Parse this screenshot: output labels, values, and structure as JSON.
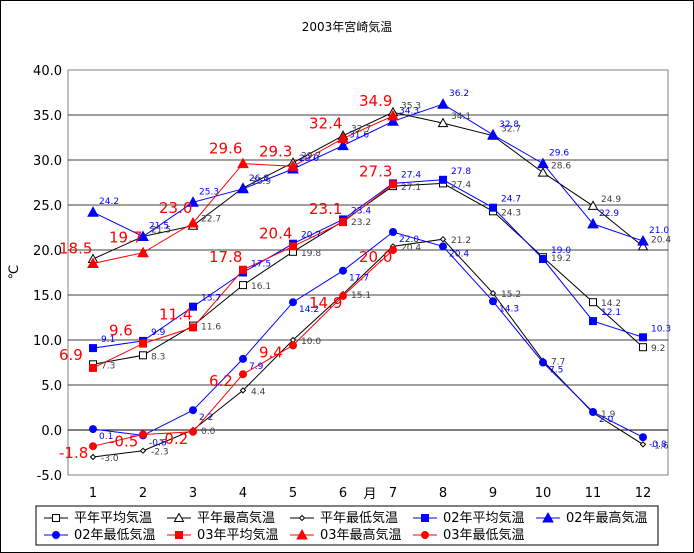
{
  "chart_data": {
    "type": "line",
    "title": "2003年宮崎気温",
    "xlabel": "月",
    "ylabel": "℃",
    "x": [
      1,
      2,
      3,
      4,
      5,
      6,
      7,
      8,
      9,
      10,
      11,
      12
    ],
    "ylim": [
      -5,
      40
    ],
    "yticks": [
      "-5.0",
      "0.0",
      "5.0",
      "10.0",
      "15.0",
      "20.0",
      "25.0",
      "30.0",
      "35.0",
      "40.0"
    ],
    "grid": true,
    "legend_position": "bottom",
    "series": [
      {
        "name": "平年平均気温",
        "color": "#000000",
        "marker": "square-open",
        "labels": false,
        "values": [
          7.3,
          8.3,
          11.6,
          16.1,
          19.8,
          23.2,
          27.1,
          27.4,
          24.3,
          19.2,
          14.2,
          9.2
        ]
      },
      {
        "name": "平年最高気温",
        "color": "#000000",
        "marker": "triangle-open",
        "labels": false,
        "values": [
          19.0,
          21.5,
          22.7,
          26.9,
          29.7,
          32.7,
          35.3,
          34.1,
          32.7,
          28.6,
          24.9,
          20.4
        ]
      },
      {
        "name": "平年最低気温",
        "color": "#000000",
        "marker": "diamond-small",
        "labels": false,
        "values": [
          -3.0,
          -2.3,
          0.0,
          4.4,
          10.0,
          15.1,
          20.4,
          21.2,
          15.2,
          7.7,
          1.9,
          -1.6
        ]
      },
      {
        "name": "02年平均気温",
        "color": "#0000ff",
        "marker": "square",
        "labels": false,
        "values": [
          9.1,
          9.9,
          13.7,
          17.5,
          20.7,
          23.4,
          27.4,
          27.8,
          24.7,
          19.0,
          12.1,
          10.3
        ]
      },
      {
        "name": "02年最高気温",
        "color": "#0000ff",
        "marker": "triangle",
        "labels": false,
        "values": [
          24.2,
          21.5,
          25.3,
          26.8,
          29.0,
          31.6,
          34.3,
          36.2,
          32.8,
          29.6,
          22.9,
          21.0
        ]
      },
      {
        "name": "02年最低気温",
        "color": "#0000ff",
        "marker": "circle",
        "labels": false,
        "values": [
          0.1,
          -0.6,
          2.2,
          7.9,
          14.2,
          17.7,
          22.0,
          20.4,
          14.3,
          7.5,
          2.0,
          -0.8
        ]
      },
      {
        "name": "03年平均気温",
        "color": "#ff0000",
        "marker": "square",
        "labels": true,
        "values": [
          6.9,
          9.6,
          11.4,
          17.8,
          20.4,
          23.1,
          27.3,
          null,
          null,
          null,
          null,
          null
        ]
      },
      {
        "name": "03年最高気温",
        "color": "#ff0000",
        "marker": "triangle",
        "labels": true,
        "values": [
          18.5,
          19.7,
          23.0,
          29.6,
          29.3,
          32.4,
          34.9,
          null,
          null,
          null,
          null,
          null
        ]
      },
      {
        "name": "03年最低気温",
        "color": "#ff0000",
        "marker": "circle",
        "labels": true,
        "values": [
          -1.8,
          -0.5,
          -0.2,
          6.2,
          9.4,
          14.9,
          20.0,
          null,
          null,
          null,
          null,
          null
        ]
      }
    ],
    "point_labels": [
      {
        "text": "7.3",
        "series": 0,
        "i": 0
      },
      {
        "text": "8.3",
        "series": 0,
        "i": 1
      },
      {
        "text": "11.6",
        "series": 0,
        "i": 2
      },
      {
        "text": "16.1",
        "series": 0,
        "i": 3
      },
      {
        "text": "19.8",
        "series": 0,
        "i": 4
      },
      {
        "text": "23.2",
        "series": 0,
        "i": 5
      },
      {
        "text": "27.1",
        "series": 0,
        "i": 6
      },
      {
        "text": "27.4",
        "series": 0,
        "i": 7
      },
      {
        "text": "24.3",
        "series": 0,
        "i": 8
      },
      {
        "text": "19.2",
        "series": 0,
        "i": 9
      },
      {
        "text": "14.2",
        "series": 0,
        "i": 10
      },
      {
        "text": "9.2",
        "series": 0,
        "i": 11
      },
      {
        "text": "21.5",
        "series": 1,
        "i": 1
      },
      {
        "text": "22.7",
        "series": 1,
        "i": 2
      },
      {
        "text": "26.9",
        "series": 1,
        "i": 3
      },
      {
        "text": "29.7",
        "series": 1,
        "i": 4
      },
      {
        "text": "32.7",
        "series": 1,
        "i": 5
      },
      {
        "text": "35.3",
        "series": 1,
        "i": 6
      },
      {
        "text": "34.1",
        "series": 1,
        "i": 7
      },
      {
        "text": "32.7",
        "series": 1,
        "i": 8
      },
      {
        "text": "28.6",
        "series": 1,
        "i": 9
      },
      {
        "text": "24.9",
        "series": 1,
        "i": 10
      },
      {
        "text": "20.4",
        "series": 1,
        "i": 11
      },
      {
        "text": "-3.0",
        "series": 2,
        "i": 0
      },
      {
        "text": "-2.3",
        "series": 2,
        "i": 1
      },
      {
        "text": "0.0",
        "series": 2,
        "i": 2
      },
      {
        "text": "4.4",
        "series": 2,
        "i": 3
      },
      {
        "text": "10.0",
        "series": 2,
        "i": 4
      },
      {
        "text": "15.1",
        "series": 2,
        "i": 5
      },
      {
        "text": "20.4",
        "series": 2,
        "i": 6
      },
      {
        "text": "21.2",
        "series": 2,
        "i": 7
      },
      {
        "text": "15.2",
        "series": 2,
        "i": 8
      },
      {
        "text": "7.7",
        "series": 2,
        "i": 9
      },
      {
        "text": "1.9",
        "series": 2,
        "i": 10
      },
      {
        "text": "-1.6",
        "series": 2,
        "i": 11
      },
      {
        "text": "9.1",
        "series": 3,
        "i": 0
      },
      {
        "text": "9.9",
        "series": 3,
        "i": 1
      },
      {
        "text": "13.7",
        "series": 3,
        "i": 2
      },
      {
        "text": "17.5",
        "series": 3,
        "i": 3
      },
      {
        "text": "20.7",
        "series": 3,
        "i": 4
      },
      {
        "text": "23.4",
        "series": 3,
        "i": 5
      },
      {
        "text": "27.4",
        "series": 3,
        "i": 6
      },
      {
        "text": "27.8",
        "series": 3,
        "i": 7
      },
      {
        "text": "24.7",
        "series": 3,
        "i": 8
      },
      {
        "text": "19.0",
        "series": 3,
        "i": 9
      },
      {
        "text": "12.1",
        "series": 3,
        "i": 10
      },
      {
        "text": "10.3",
        "series": 3,
        "i": 11
      },
      {
        "text": "24.2",
        "series": 4,
        "i": 0
      },
      {
        "text": "21.5",
        "series": 4,
        "i": 1
      },
      {
        "text": "25.3",
        "series": 4,
        "i": 2
      },
      {
        "text": "26.8",
        "series": 4,
        "i": 3
      },
      {
        "text": "29.0",
        "series": 4,
        "i": 4
      },
      {
        "text": "31.6",
        "series": 4,
        "i": 5
      },
      {
        "text": "34.3",
        "series": 4,
        "i": 6
      },
      {
        "text": "36.2",
        "series": 4,
        "i": 7
      },
      {
        "text": "32.8",
        "series": 4,
        "i": 8
      },
      {
        "text": "29.6",
        "series": 4,
        "i": 9
      },
      {
        "text": "22.9",
        "series": 4,
        "i": 10
      },
      {
        "text": "21.0",
        "series": 4,
        "i": 11
      },
      {
        "text": "0.1",
        "series": 5,
        "i": 0
      },
      {
        "text": "-0.6",
        "series": 5,
        "i": 1
      },
      {
        "text": "2.2",
        "series": 5,
        "i": 2
      },
      {
        "text": "7.9",
        "series": 5,
        "i": 3
      },
      {
        "text": "14.2",
        "series": 5,
        "i": 4
      },
      {
        "text": "17.7",
        "series": 5,
        "i": 5
      },
      {
        "text": "22.0",
        "series": 5,
        "i": 6
      },
      {
        "text": "20.4",
        "series": 5,
        "i": 7
      },
      {
        "text": "14.3",
        "series": 5,
        "i": 8
      },
      {
        "text": "7.5",
        "series": 5,
        "i": 9
      },
      {
        "text": "2.0",
        "series": 5,
        "i": 10
      },
      {
        "text": "-0.8",
        "series": 5,
        "i": 11
      },
      {
        "text": "6.9",
        "series": 6,
        "i": 0
      },
      {
        "text": "9.6",
        "series": 6,
        "i": 1
      },
      {
        "text": "11.4",
        "series": 6,
        "i": 2
      },
      {
        "text": "17.8",
        "series": 6,
        "i": 3
      },
      {
        "text": "20.4",
        "series": 6,
        "i": 4
      },
      {
        "text": "23.1",
        "series": 6,
        "i": 5
      },
      {
        "text": "27.3",
        "series": 6,
        "i": 6
      },
      {
        "text": "18.5",
        "series": 7,
        "i": 0
      },
      {
        "text": "19.7",
        "series": 7,
        "i": 1
      },
      {
        "text": "23.0",
        "series": 7,
        "i": 2
      },
      {
        "text": "29.6",
        "series": 7,
        "i": 3
      },
      {
        "text": "29.3",
        "series": 7,
        "i": 4
      },
      {
        "text": "32.4",
        "series": 7,
        "i": 5
      },
      {
        "text": "34.9",
        "series": 7,
        "i": 6
      },
      {
        "text": "-1.8",
        "series": 8,
        "i": 0
      },
      {
        "text": "-0.5",
        "series": 8,
        "i": 1
      },
      {
        "text": "-0.2",
        "series": 8,
        "i": 2
      },
      {
        "text": "6.2",
        "series": 8,
        "i": 3
      },
      {
        "text": "9.4",
        "series": 8,
        "i": 4
      },
      {
        "text": "14.9",
        "series": 8,
        "i": 5
      },
      {
        "text": "20.0",
        "series": 8,
        "i": 6
      }
    ]
  }
}
